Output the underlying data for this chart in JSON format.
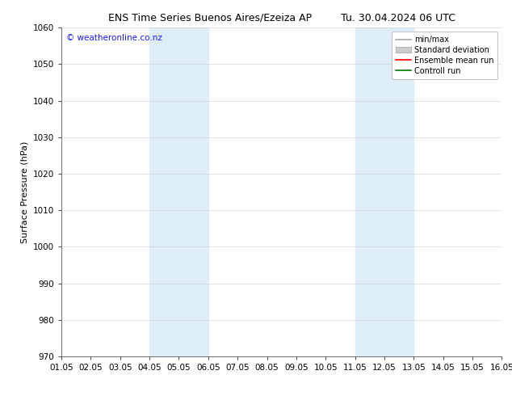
{
  "title_left": "ENS Time Series Buenos Aires/Ezeiza AP",
  "title_right": "Tu. 30.04.2024 06 UTC",
  "ylabel": "Surface Pressure (hPa)",
  "ylim": [
    970,
    1060
  ],
  "yticks": [
    970,
    980,
    990,
    1000,
    1010,
    1020,
    1030,
    1040,
    1050,
    1060
  ],
  "xtick_labels": [
    "01.05",
    "02.05",
    "03.05",
    "04.05",
    "05.05",
    "06.05",
    "07.05",
    "08.05",
    "09.05",
    "10.05",
    "11.05",
    "12.05",
    "13.05",
    "14.05",
    "15.05",
    "16.05"
  ],
  "xlim": [
    0,
    15
  ],
  "shaded_bands": [
    {
      "x_start": 3,
      "x_end": 5,
      "color": "#ddeef8"
    },
    {
      "x_start": 10,
      "x_end": 12,
      "color": "#ddeef8"
    }
  ],
  "watermark_text": "© weatheronline.co.nz",
  "watermark_color": "#1a1aff",
  "legend_items": [
    {
      "label": "min/max",
      "color": "#aaaaaa",
      "lw": 1.2,
      "style": "solid"
    },
    {
      "label": "Standard deviation",
      "color": "#cccccc",
      "lw": 7,
      "style": "solid"
    },
    {
      "label": "Ensemble mean run",
      "color": "#ff0000",
      "lw": 1.2,
      "style": "solid"
    },
    {
      "label": "Controll run",
      "color": "#007700",
      "lw": 1.2,
      "style": "solid"
    }
  ],
  "bg_color": "#ffffff",
  "title_fontsize": 9,
  "axis_label_fontsize": 8,
  "tick_fontsize": 7.5,
  "watermark_fontsize": 7.5,
  "legend_fontsize": 7
}
